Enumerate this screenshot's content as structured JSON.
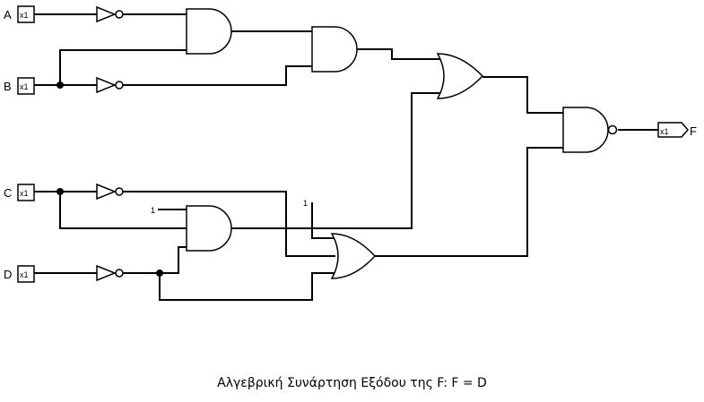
{
  "inputs": [
    {
      "name": "A",
      "tag": "x1"
    },
    {
      "name": "B",
      "tag": "x1"
    },
    {
      "name": "C",
      "tag": "x1"
    },
    {
      "name": "D",
      "tag": "x1"
    }
  ],
  "output": {
    "name": "F",
    "tag": "x1"
  },
  "constants": {
    "and_gate_const": "1",
    "or_gate_const": "1"
  },
  "caption": "Αλγεβρική Συνάρτηση Εξόδου της F: F = D"
}
